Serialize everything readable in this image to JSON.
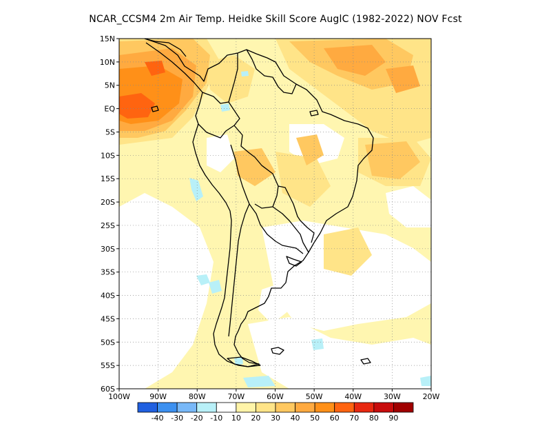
{
  "title": "NCAR_CCSM4  2m Air Temp. Heidke Skill Score AuglC (1982-2022) NOV Fcst",
  "map": {
    "lon_range": [
      -100,
      -20
    ],
    "lat_range": [
      -60,
      15
    ],
    "lat_ticks": [
      "15N",
      "10N",
      "5N",
      "EQ",
      "5S",
      "10S",
      "15S",
      "20S",
      "25S",
      "30S",
      "35S",
      "40S",
      "45S",
      "50S",
      "55S",
      "60S"
    ],
    "lon_ticks": [
      "100W",
      "90W",
      "80W",
      "70W",
      "60W",
      "50W",
      "40W",
      "30W",
      "20W"
    ],
    "grid": true
  },
  "colorbar": {
    "colors": [
      "#2060e0",
      "#3c90f0",
      "#78b8f8",
      "#b8f0f8",
      "#ffffff",
      "#fff4a8",
      "#ffe488",
      "#ffc860",
      "#ffaa40",
      "#ff9018",
      "#ff6410",
      "#e82810",
      "#c80c0c",
      "#a00000"
    ],
    "tick_labels": [
      "-40",
      "-30",
      "-20",
      "-10",
      "10",
      "20",
      "30",
      "40",
      "50",
      "60",
      "70",
      "80",
      "90"
    ]
  }
}
